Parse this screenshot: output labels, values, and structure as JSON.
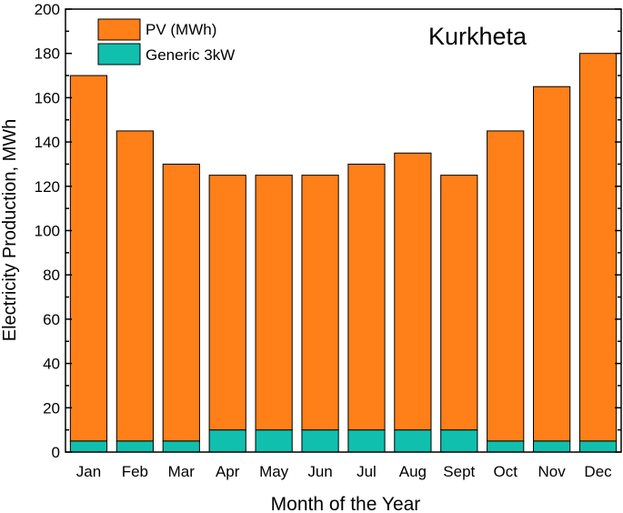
{
  "chart_data": {
    "type": "bar",
    "stacked": true,
    "title": "Kurkheta",
    "xlabel": "Month of the Year",
    "ylabel": "Electricity Production, MWh",
    "ylim": [
      0,
      200
    ],
    "yticks": [
      0,
      20,
      40,
      60,
      80,
      100,
      120,
      140,
      160,
      180,
      200
    ],
    "categories": [
      "Jan",
      "Feb",
      "Mar",
      "Apr",
      "May",
      "Jun",
      "Jul",
      "Aug",
      "Sept",
      "Oct",
      "Nov",
      "Dec"
    ],
    "series": [
      {
        "name": "Generic 3kW",
        "color": "#11bfae",
        "values": [
          5,
          5,
          5,
          10,
          10,
          10,
          10,
          10,
          10,
          5,
          5,
          5
        ]
      },
      {
        "name": "PV (MWh)",
        "color": "#ff7f18",
        "values": [
          165,
          140,
          125,
          115,
          115,
          115,
          120,
          125,
          115,
          140,
          160,
          175
        ]
      }
    ],
    "legend": [
      {
        "label": "PV (MWh)",
        "color": "#ff7f18"
      },
      {
        "label": "Generic 3kW",
        "color": "#11bfae"
      }
    ],
    "legend_position": "top-left",
    "grid": false
  }
}
